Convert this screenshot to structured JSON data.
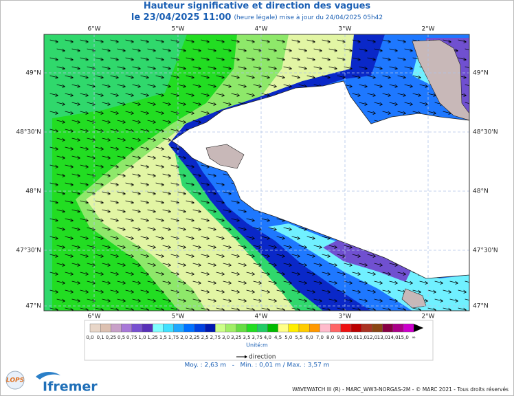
{
  "header": {
    "title": "Hauteur significative et direction des vagues",
    "date": "le 23/04/2025 11:00",
    "update": "(heure légale) mise à jour du 24/04/2025 05h42"
  },
  "axes": {
    "lon": [
      "6°W",
      "5°W",
      "4°W",
      "3°W",
      "2°W"
    ],
    "lat": [
      "49°N",
      "48°30'N",
      "48°N",
      "47°30'N",
      "47°N"
    ]
  },
  "legend": {
    "labels": [
      "0,0",
      "0,1",
      "0,25",
      "0,5",
      "0,75",
      "1,0",
      "1,25",
      "1,5",
      "1,75",
      "2,0",
      "2,25",
      "2,5",
      "2,75",
      "3,0",
      "3,25",
      "3,5",
      "3,75",
      "4,0",
      "4,5",
      "5,0",
      "5,5",
      "6,0",
      "7,0",
      "8,0",
      "9,0",
      "10,0",
      "11,0",
      "12,0",
      "13,0",
      "14,0",
      "15,0",
      "∞"
    ],
    "colors": [
      "#e8d6c8",
      "#dcc0b0",
      "#c8a0c8",
      "#a878d8",
      "#7850d0",
      "#5830b8",
      "#80ffff",
      "#40e0ff",
      "#20a8ff",
      "#0070ff",
      "#0040e0",
      "#0018b0",
      "#ccff88",
      "#a0ee66",
      "#66dd44",
      "#22dd22",
      "#22cc66",
      "#00bb00",
      "#ffff88",
      "#ffee00",
      "#ffcc00",
      "#ff9900",
      "#ffbbcc",
      "#ff6666",
      "#ee1111",
      "#bb0000",
      "#aa3322",
      "#8b4513",
      "#880044",
      "#aa0088",
      "#cc00cc"
    ],
    "unit": "Unité:m",
    "direction": "direction"
  },
  "stats": "Moy. : 2,63 m   -   Min. : 0,01 m / Max. : 3,57 m",
  "footer": {
    "credit": "WAVEWATCH III (R) - MARC_WW3-NORGAS-2M - © MARC 2021 - Tous droits réservés",
    "lops": "LOPS",
    "ifremer": "Ifremer"
  }
}
